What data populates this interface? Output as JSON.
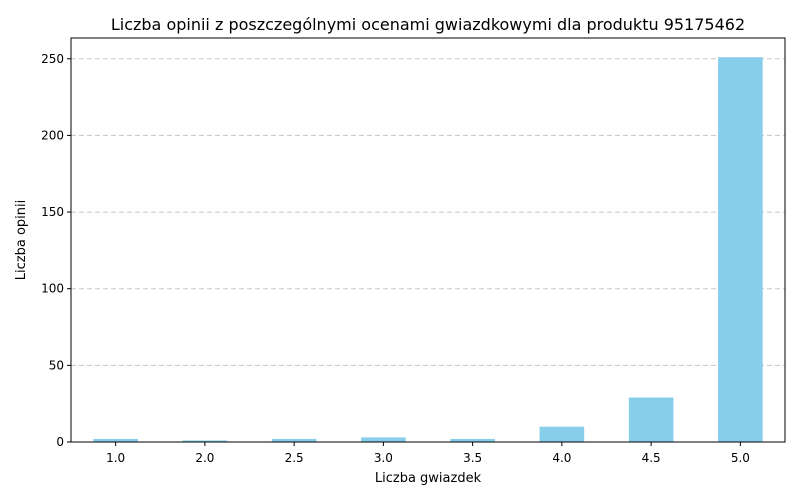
{
  "chart_data": {
    "type": "bar",
    "title": "Liczba opinii z poszczególnymi ocenami gwiazdkowymi dla produktu 95175462",
    "xlabel": "Liczba gwiazdek",
    "ylabel": "Liczba opinii",
    "categories": [
      "1.0",
      "2.0",
      "2.5",
      "3.0",
      "3.5",
      "4.0",
      "4.5",
      "5.0"
    ],
    "values": [
      2,
      1,
      2,
      3,
      2,
      10,
      29,
      251
    ],
    "ylim": [
      0,
      263.55
    ],
    "yticks": [
      0,
      50,
      100,
      150,
      200,
      250
    ],
    "grid": "y-dashed",
    "legend": "none",
    "bar_color": "#87CEEB",
    "grid_color": "#c8c8c8"
  }
}
